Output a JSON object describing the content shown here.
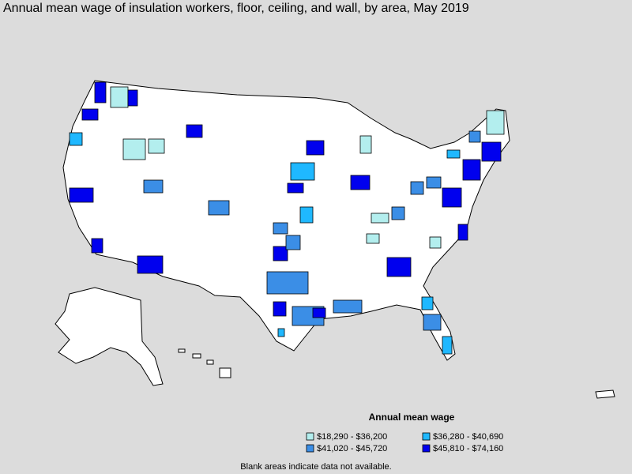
{
  "title": "Annual mean wage of insulation workers, floor, ceiling, and wall, by area, May 2019",
  "legend": {
    "title": "Annual mean wage",
    "items": [
      {
        "label": "$18,290 - $36,200",
        "color": "#b3eeee"
      },
      {
        "label": "$36,280 - $40,690",
        "color": "#1fb8ff"
      },
      {
        "label": "$41,020 - $45,720",
        "color": "#3b8ee6"
      },
      {
        "label": "$45,810 - $74,160",
        "color": "#0000ee"
      }
    ]
  },
  "note": "Blank areas indicate data not available."
}
